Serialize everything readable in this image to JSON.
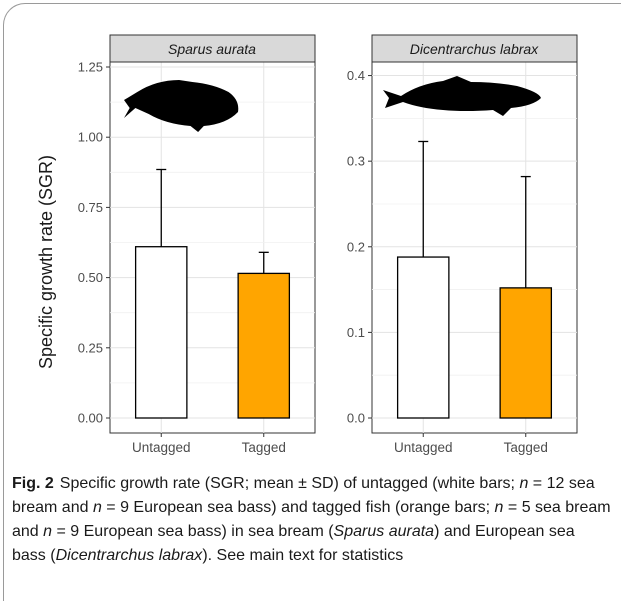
{
  "chart_data": [
    {
      "type": "bar",
      "panel_title": "Sparus aurata",
      "categories": [
        "Untagged",
        "Tagged"
      ],
      "values": [
        0.61,
        0.515
      ],
      "error_upper": [
        0.885,
        0.59
      ],
      "colors": [
        "#ffffff",
        "#ffa500"
      ],
      "ylabel": "Specific growth rate (SGR)",
      "ylim": [
        0,
        1.25
      ],
      "yticks": [
        "0.00",
        "0.25",
        "0.50",
        "0.75",
        "1.00",
        "1.25"
      ],
      "ytick_values": [
        0,
        0.25,
        0.5,
        0.75,
        1.0,
        1.25
      ],
      "grid": true,
      "icon": "sea-bream-silhouette"
    },
    {
      "type": "bar",
      "panel_title": "Dicentrarchus labrax",
      "categories": [
        "Untagged",
        "Tagged"
      ],
      "values": [
        0.188,
        0.152
      ],
      "error_upper": [
        0.323,
        0.282
      ],
      "colors": [
        "#ffffff",
        "#ffa500"
      ],
      "ylim": [
        0,
        0.41
      ],
      "yticks": [
        "0.0",
        "0.1",
        "0.2",
        "0.3",
        "0.4"
      ],
      "ytick_values": [
        0,
        0.1,
        0.2,
        0.3,
        0.4
      ],
      "grid": true,
      "icon": "sea-bass-silhouette"
    }
  ],
  "caption": {
    "label": "Fig. 2",
    "p1": "Specific growth rate (SGR; mean ± SD) of untagged (white bars; ",
    "n1": "n",
    "p2": " = 12 sea bream and ",
    "n2": "n",
    "p3": " = 9 European sea bass) and tagged fish (orange bars; ",
    "n3": "n",
    "p4": " = 5 sea bream and ",
    "n4": "n",
    "p5": " = 9 European sea bass) in sea bream (",
    "sp1": "Sparus aurata",
    "p6": ") and European sea bass (",
    "sp2": "Dicentrarchus labrax",
    "p7": "). See main text for statistics"
  }
}
